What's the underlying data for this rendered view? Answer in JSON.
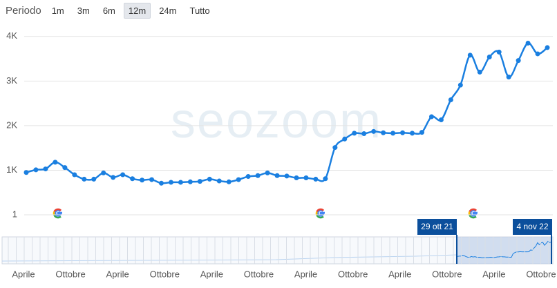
{
  "toolbar": {
    "label": "Periodo",
    "buttons": [
      "1m",
      "3m",
      "6m",
      "12m",
      "24m",
      "Tutto"
    ],
    "selected": "12m"
  },
  "chart_data": {
    "type": "line",
    "watermark": "seozoom",
    "ylim": [
      -200,
      4300
    ],
    "yticks": [
      1,
      {
        "value": 1000,
        "label": "1K"
      },
      {
        "value": 2000,
        "label": "2K"
      },
      {
        "value": 3000,
        "label": "3K"
      },
      {
        "value": 4000,
        "label": "4K"
      }
    ],
    "grid": true,
    "series": [
      {
        "color": "#1a7fe0",
        "values": [
          950,
          1010,
          1030,
          1180,
          1060,
          900,
          800,
          800,
          940,
          840,
          900,
          810,
          780,
          790,
          710,
          730,
          730,
          740,
          750,
          800,
          760,
          740,
          790,
          860,
          880,
          940,
          880,
          870,
          830,
          830,
          800,
          810,
          1510,
          1700,
          1830,
          1820,
          1870,
          1840,
          1830,
          1840,
          1830,
          1850,
          2200,
          2130,
          2580,
          2910,
          3580,
          3200,
          3540,
          3650,
          3090,
          3460,
          3850,
          3610,
          3750
        ]
      }
    ]
  },
  "navigator": {
    "xlabels": [
      "Aprile",
      "Ottobre",
      "Aprile",
      "Ottobre",
      "Aprile",
      "Ottobre",
      "Aprile",
      "Ottobre",
      "Aprile",
      "Ottobre",
      "Aprile",
      "Ottobre"
    ],
    "range_labels": [
      "29 ott 21",
      "4 nov 22"
    ]
  }
}
